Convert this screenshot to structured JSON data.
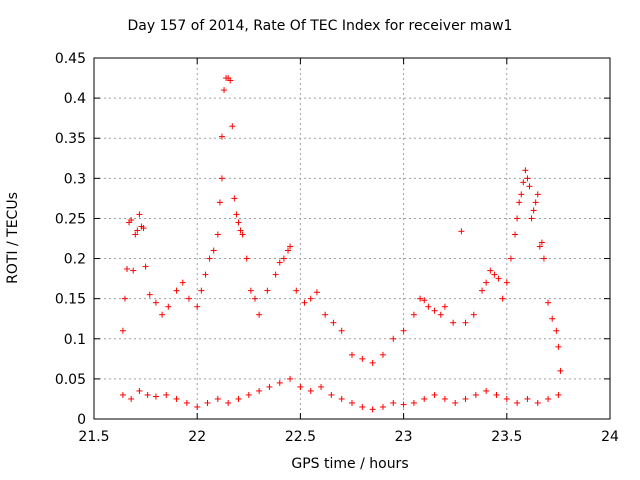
{
  "chart_data": {
    "type": "scatter",
    "title": "Day 157 of 2014, Rate Of TEC Index for receiver maw1",
    "xlabel": "GPS time / hours",
    "ylabel": "ROTI / TECUs",
    "xlim": [
      21.5,
      24
    ],
    "ylim": [
      0,
      0.45
    ],
    "x_ticks": [
      "21.5",
      "22",
      "22.5",
      "23",
      "23.5",
      "24"
    ],
    "y_ticks": [
      "0",
      "0.05",
      "0.1",
      "0.15",
      "0.2",
      "0.25",
      "0.3",
      "0.35",
      "0.4",
      "0.45"
    ],
    "grid": true,
    "marker": "+",
    "color": "#ff0000",
    "series": [
      {
        "name": "ROTI",
        "points": [
          [
            21.64,
            0.11
          ],
          [
            21.65,
            0.15
          ],
          [
            21.66,
            0.187
          ],
          [
            21.67,
            0.245
          ],
          [
            21.68,
            0.248
          ],
          [
            21.69,
            0.185
          ],
          [
            21.7,
            0.23
          ],
          [
            21.71,
            0.235
          ],
          [
            21.72,
            0.255
          ],
          [
            21.73,
            0.24
          ],
          [
            21.74,
            0.238
          ],
          [
            21.75,
            0.19
          ],
          [
            21.77,
            0.155
          ],
          [
            21.8,
            0.145
          ],
          [
            21.83,
            0.13
          ],
          [
            21.86,
            0.14
          ],
          [
            21.9,
            0.16
          ],
          [
            21.93,
            0.17
          ],
          [
            21.96,
            0.15
          ],
          [
            22.0,
            0.14
          ],
          [
            22.02,
            0.16
          ],
          [
            22.04,
            0.18
          ],
          [
            22.06,
            0.2
          ],
          [
            22.08,
            0.21
          ],
          [
            22.1,
            0.23
          ],
          [
            22.11,
            0.27
          ],
          [
            22.12,
            0.3
          ],
          [
            22.12,
            0.352
          ],
          [
            22.13,
            0.41
          ],
          [
            22.14,
            0.425
          ],
          [
            22.15,
            0.425
          ],
          [
            22.16,
            0.422
          ],
          [
            22.17,
            0.365
          ],
          [
            22.18,
            0.275
          ],
          [
            22.19,
            0.255
          ],
          [
            22.2,
            0.245
          ],
          [
            22.21,
            0.235
          ],
          [
            22.22,
            0.23
          ],
          [
            22.24,
            0.2
          ],
          [
            22.26,
            0.16
          ],
          [
            22.28,
            0.15
          ],
          [
            22.3,
            0.13
          ],
          [
            22.34,
            0.16
          ],
          [
            22.38,
            0.18
          ],
          [
            22.4,
            0.195
          ],
          [
            22.42,
            0.2
          ],
          [
            22.44,
            0.21
          ],
          [
            22.45,
            0.215
          ],
          [
            22.48,
            0.16
          ],
          [
            22.52,
            0.145
          ],
          [
            22.55,
            0.15
          ],
          [
            22.58,
            0.158
          ],
          [
            22.62,
            0.13
          ],
          [
            22.66,
            0.12
          ],
          [
            22.7,
            0.11
          ],
          [
            22.75,
            0.08
          ],
          [
            22.8,
            0.075
          ],
          [
            22.85,
            0.07
          ],
          [
            22.9,
            0.08
          ],
          [
            22.95,
            0.1
          ],
          [
            23.0,
            0.11
          ],
          [
            23.05,
            0.13
          ],
          [
            23.08,
            0.15
          ],
          [
            23.1,
            0.148
          ],
          [
            23.12,
            0.14
          ],
          [
            23.15,
            0.135
          ],
          [
            23.18,
            0.13
          ],
          [
            23.2,
            0.14
          ],
          [
            23.24,
            0.12
          ],
          [
            23.28,
            0.234
          ],
          [
            23.3,
            0.12
          ],
          [
            23.34,
            0.13
          ],
          [
            23.38,
            0.16
          ],
          [
            23.4,
            0.17
          ],
          [
            23.42,
            0.185
          ],
          [
            23.44,
            0.18
          ],
          [
            23.46,
            0.175
          ],
          [
            23.48,
            0.15
          ],
          [
            23.5,
            0.17
          ],
          [
            23.52,
            0.2
          ],
          [
            23.54,
            0.23
          ],
          [
            23.55,
            0.25
          ],
          [
            23.56,
            0.27
          ],
          [
            23.57,
            0.28
          ],
          [
            23.58,
            0.295
          ],
          [
            23.59,
            0.31
          ],
          [
            23.6,
            0.3
          ],
          [
            23.61,
            0.29
          ],
          [
            23.62,
            0.25
          ],
          [
            23.63,
            0.26
          ],
          [
            23.64,
            0.27
          ],
          [
            23.65,
            0.28
          ],
          [
            23.66,
            0.215
          ],
          [
            23.67,
            0.22
          ],
          [
            23.68,
            0.2
          ],
          [
            23.7,
            0.145
          ],
          [
            23.72,
            0.125
          ],
          [
            23.74,
            0.11
          ],
          [
            23.75,
            0.09
          ],
          [
            23.76,
            0.06
          ],
          [
            21.64,
            0.03
          ],
          [
            21.68,
            0.025
          ],
          [
            21.72,
            0.035
          ],
          [
            21.76,
            0.03
          ],
          [
            21.8,
            0.028
          ],
          [
            21.85,
            0.03
          ],
          [
            21.9,
            0.025
          ],
          [
            21.95,
            0.02
          ],
          [
            22.0,
            0.015
          ],
          [
            22.05,
            0.02
          ],
          [
            22.1,
            0.025
          ],
          [
            22.15,
            0.02
          ],
          [
            22.2,
            0.025
          ],
          [
            22.25,
            0.03
          ],
          [
            22.3,
            0.035
          ],
          [
            22.35,
            0.04
          ],
          [
            22.4,
            0.045
          ],
          [
            22.45,
            0.05
          ],
          [
            22.5,
            0.04
          ],
          [
            22.55,
            0.035
          ],
          [
            22.6,
            0.04
          ],
          [
            22.65,
            0.03
          ],
          [
            22.7,
            0.025
          ],
          [
            22.75,
            0.02
          ],
          [
            22.8,
            0.015
          ],
          [
            22.85,
            0.012
          ],
          [
            22.9,
            0.015
          ],
          [
            22.95,
            0.02
          ],
          [
            23.0,
            0.018
          ],
          [
            23.05,
            0.02
          ],
          [
            23.1,
            0.025
          ],
          [
            23.15,
            0.03
          ],
          [
            23.2,
            0.025
          ],
          [
            23.25,
            0.02
          ],
          [
            23.3,
            0.025
          ],
          [
            23.35,
            0.03
          ],
          [
            23.4,
            0.035
          ],
          [
            23.45,
            0.03
          ],
          [
            23.5,
            0.025
          ],
          [
            23.55,
            0.02
          ],
          [
            23.6,
            0.025
          ],
          [
            23.65,
            0.02
          ],
          [
            23.7,
            0.025
          ],
          [
            23.75,
            0.03
          ]
        ]
      }
    ]
  }
}
